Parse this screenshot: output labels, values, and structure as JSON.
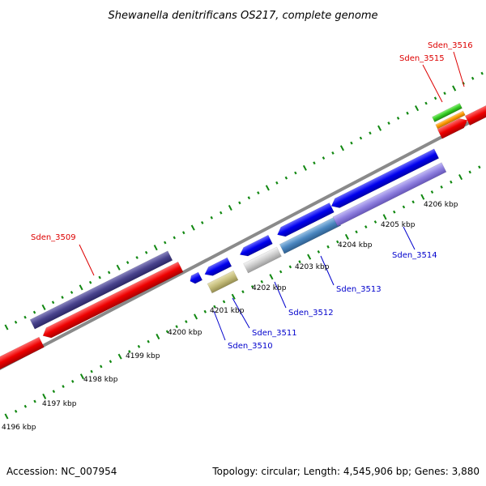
{
  "title": "Shewanella denitrificans OS217, complete genome",
  "footer": {
    "accession": "Accession: NC_007954",
    "summary": "Topology: circular; Length: 4,545,906 bp; Genes: 3,880"
  },
  "colors": {
    "label_red": "#dd0000",
    "label_blue": "#0000cc",
    "backbone": "#8a8a8a",
    "tick": "#118811"
  },
  "tick_labels": [
    "4196 kbp",
    "4197 kbp",
    "4198 kbp",
    "4199 kbp",
    "4200 kbp",
    "4201 kbp",
    "4202 kbp",
    "4203 kbp",
    "4204 kbp",
    "4205 kbp",
    "4206 kbp"
  ],
  "gene_labels": [
    {
      "text": "Sden_3509",
      "color": "red"
    },
    {
      "text": "Sden_3510",
      "color": "blue"
    },
    {
      "text": "Sden_3511",
      "color": "blue"
    },
    {
      "text": "Sden_3512",
      "color": "blue"
    },
    {
      "text": "Sden_3513",
      "color": "blue"
    },
    {
      "text": "Sden_3514",
      "color": "blue"
    },
    {
      "text": "Sden_3515",
      "color": "red"
    },
    {
      "text": "Sden_3516",
      "color": "red"
    }
  ]
}
